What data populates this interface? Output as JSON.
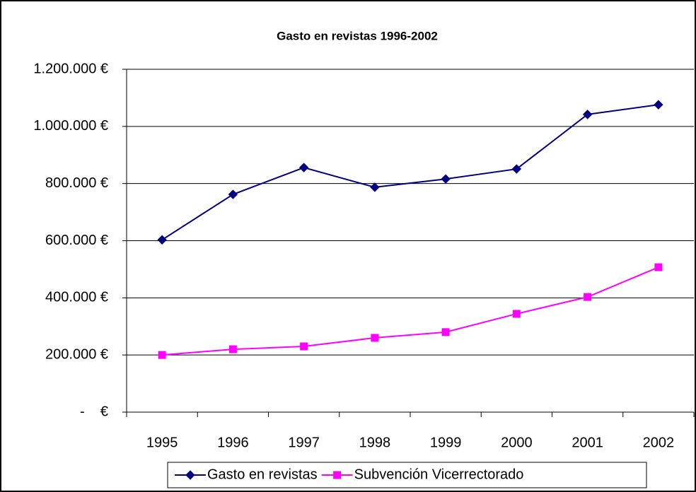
{
  "chart_data": {
    "type": "line",
    "title": "Gasto en revistas 1996-2002",
    "categories": [
      "1995",
      "1996",
      "1997",
      "1998",
      "1999",
      "2000",
      "2001",
      "2002"
    ],
    "series": [
      {
        "name": "Gasto en revistas",
        "color": "#000080",
        "marker": "diamond",
        "values": [
          603000,
          762000,
          856000,
          787000,
          816000,
          851000,
          1042000,
          1076000
        ]
      },
      {
        "name": "Subvención Vicerrectorado",
        "color": "#ff00ff",
        "marker": "square",
        "values": [
          200000,
          220000,
          230000,
          260000,
          280000,
          344000,
          403000,
          507000
        ]
      }
    ],
    "ylim": [
      0,
      1200000
    ],
    "yticks": [
      {
        "value": 0,
        "label": "-    €"
      },
      {
        "value": 200000,
        "label": "200.000 €"
      },
      {
        "value": 400000,
        "label": "400.000 €"
      },
      {
        "value": 600000,
        "label": "600.000 €"
      },
      {
        "value": 800000,
        "label": "800.000 €"
      },
      {
        "value": 1000000,
        "label": "1.000.000 €"
      },
      {
        "value": 1200000,
        "label": "1.200.000 €"
      }
    ],
    "grid": true,
    "legend": "bottom"
  }
}
